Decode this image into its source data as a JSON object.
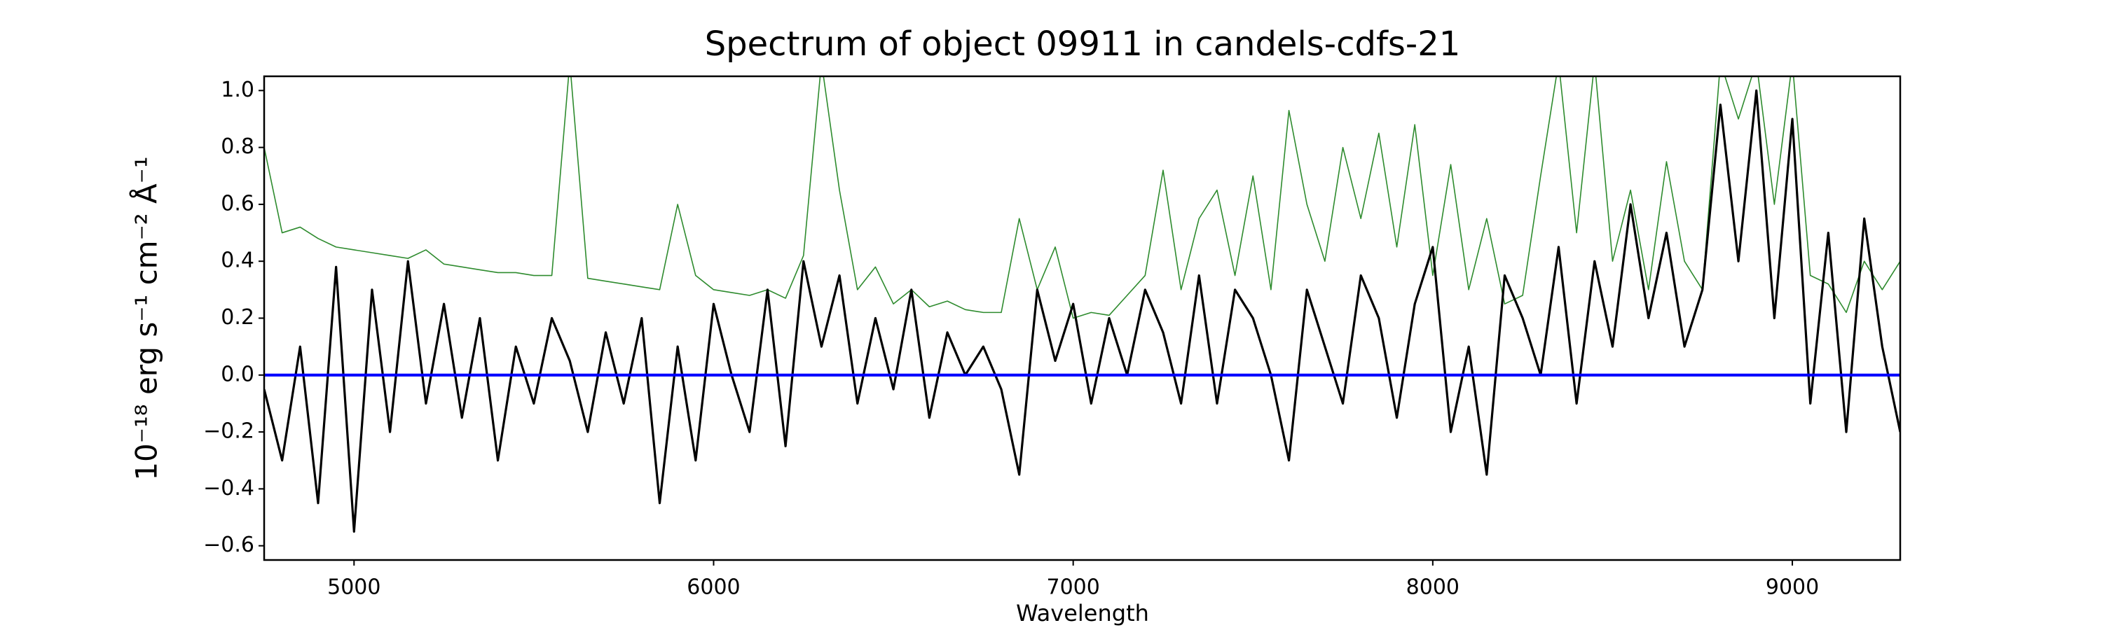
{
  "chart_data": {
    "type": "line",
    "title": "Spectrum of object 09911 in candels-cdfs-21",
    "xlabel": "Wavelength",
    "ylabel": "10⁻¹⁸ erg s⁻¹ cm⁻² Å⁻¹",
    "x": [
      4750,
      4800,
      4850,
      4900,
      4950,
      5000,
      5050,
      5100,
      5150,
      5200,
      5250,
      5300,
      5350,
      5400,
      5450,
      5500,
      5550,
      5600,
      5650,
      5700,
      5750,
      5800,
      5850,
      5900,
      5950,
      6000,
      6050,
      6100,
      6150,
      6200,
      6250,
      6300,
      6350,
      6400,
      6450,
      6500,
      6550,
      6600,
      6650,
      6700,
      6750,
      6800,
      6850,
      6900,
      6950,
      7000,
      7050,
      7100,
      7150,
      7200,
      7250,
      7300,
      7350,
      7400,
      7450,
      7500,
      7550,
      7600,
      7650,
      7700,
      7750,
      7800,
      7850,
      7900,
      7950,
      8000,
      8050,
      8100,
      8150,
      8200,
      8250,
      8300,
      8350,
      8400,
      8450,
      8500,
      8550,
      8600,
      8650,
      8700,
      8750,
      8800,
      8850,
      8900,
      8950,
      9000,
      9050,
      9100,
      9150,
      9200,
      9250,
      9300
    ],
    "series": [
      {
        "color": "#2e8b2e",
        "values": [
          0.8,
          0.5,
          0.52,
          0.48,
          0.45,
          0.44,
          0.43,
          0.42,
          0.41,
          0.44,
          0.39,
          0.38,
          0.37,
          0.36,
          0.36,
          0.35,
          0.35,
          1.1,
          0.34,
          0.33,
          0.32,
          0.31,
          0.3,
          0.6,
          0.35,
          0.3,
          0.29,
          0.28,
          0.3,
          0.27,
          0.42,
          1.1,
          0.65,
          0.3,
          0.38,
          0.25,
          0.3,
          0.24,
          0.26,
          0.23,
          0.22,
          0.22,
          0.55,
          0.3,
          0.45,
          0.2,
          0.22,
          0.21,
          0.28,
          0.35,
          0.72,
          0.3,
          0.55,
          0.65,
          0.35,
          0.7,
          0.3,
          0.93,
          0.6,
          0.4,
          0.8,
          0.55,
          0.85,
          0.45,
          0.88,
          0.35,
          0.74,
          0.3,
          0.55,
          0.25,
          0.28,
          0.7,
          1.1,
          0.5,
          1.1,
          0.4,
          0.65,
          0.3,
          0.75,
          0.4,
          0.3,
          1.1,
          0.9,
          1.1,
          0.6,
          1.1,
          0.35,
          0.32,
          0.22,
          0.4,
          0.3,
          0.4
        ]
      },
      {
        "color": "#000000",
        "values": [
          -0.05,
          -0.3,
          0.1,
          -0.45,
          0.38,
          -0.55,
          0.3,
          -0.2,
          0.4,
          -0.1,
          0.25,
          -0.15,
          0.2,
          -0.3,
          0.1,
          -0.1,
          0.2,
          0.05,
          -0.2,
          0.15,
          -0.1,
          0.2,
          -0.45,
          0.1,
          -0.3,
          0.25,
          0.0,
          -0.2,
          0.3,
          -0.25,
          0.4,
          0.1,
          0.35,
          -0.1,
          0.2,
          -0.05,
          0.3,
          -0.15,
          0.15,
          0.0,
          0.1,
          -0.05,
          -0.35,
          0.3,
          0.05,
          0.25,
          -0.1,
          0.2,
          0.0,
          0.3,
          0.15,
          -0.1,
          0.35,
          -0.1,
          0.3,
          0.2,
          0.0,
          -0.3,
          0.3,
          0.1,
          -0.1,
          0.35,
          0.2,
          -0.15,
          0.25,
          0.45,
          -0.2,
          0.1,
          -0.35,
          0.35,
          0.2,
          0.0,
          0.45,
          -0.1,
          0.4,
          0.1,
          0.6,
          0.2,
          0.5,
          0.1,
          0.3,
          0.95,
          0.4,
          1.0,
          0.2,
          0.9,
          -0.1,
          0.5,
          -0.2,
          0.55,
          0.1,
          -0.2
        ]
      },
      {
        "color": "#0000ff",
        "values": [
          0,
          0,
          0,
          0,
          0,
          0,
          0,
          0,
          0,
          0,
          0,
          0,
          0,
          0,
          0,
          0,
          0,
          0,
          0,
          0,
          0,
          0,
          0,
          0,
          0,
          0,
          0,
          0,
          0,
          0,
          0,
          0,
          0,
          0,
          0,
          0,
          0,
          0,
          0,
          0,
          0,
          0,
          0,
          0,
          0,
          0,
          0,
          0,
          0,
          0,
          0,
          0,
          0,
          0,
          0,
          0,
          0,
          0,
          0,
          0,
          0,
          0,
          0,
          0,
          0,
          0,
          0,
          0,
          0,
          0,
          0,
          0,
          0,
          0,
          0,
          0,
          0,
          0,
          0,
          0,
          0,
          0,
          0,
          0,
          0,
          0,
          0,
          0,
          0,
          0,
          0,
          0
        ]
      }
    ],
    "xlim": [
      4750,
      9300
    ],
    "ylim": [
      -0.65,
      1.05
    ],
    "xticks": [
      5000,
      6000,
      7000,
      8000,
      9000
    ],
    "yticks": [
      {
        "value": -0.6,
        "label": "−0.6"
      },
      {
        "value": -0.4,
        "label": "−0.4"
      },
      {
        "value": -0.2,
        "label": "−0.2"
      },
      {
        "value": 0,
        "label": "0.0"
      },
      {
        "value": 0.2,
        "label": "0.2"
      },
      {
        "value": 0.4,
        "label": "0.4"
      },
      {
        "value": 0.6,
        "label": "0.6"
      },
      {
        "value": 0.8,
        "label": "0.8"
      },
      {
        "value": 1.0,
        "label": "1.0"
      }
    ],
    "grid": false
  }
}
